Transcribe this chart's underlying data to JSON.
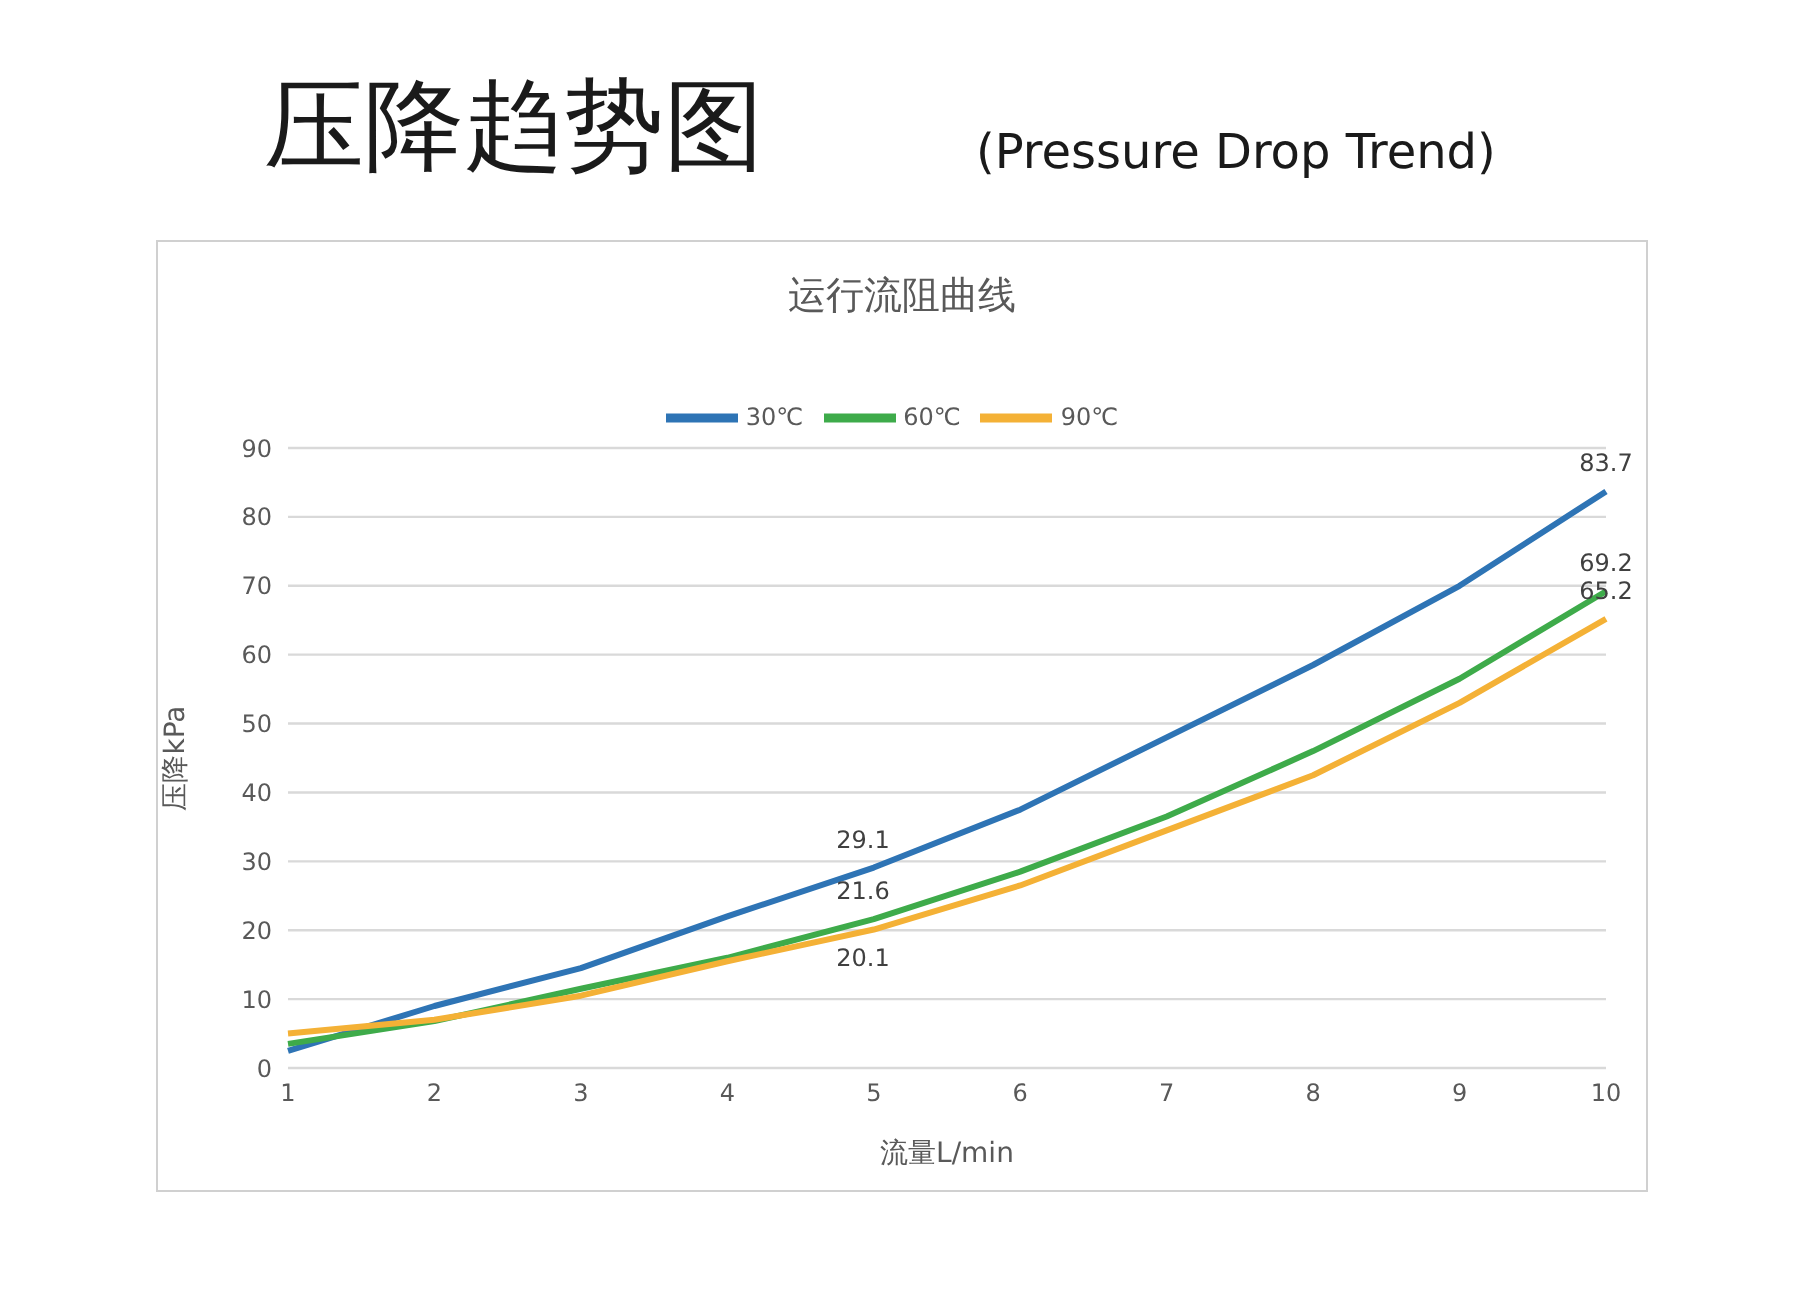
{
  "chart_data": {
    "type": "line",
    "title": "压降趋势图",
    "subtitle": "(Pressure Drop Trend)",
    "annotations": [
      "运行流阻曲线"
    ],
    "xlabel": "流量L/min",
    "ylabel": "压降kPa",
    "categories": [
      "1",
      "2",
      "3",
      "4",
      "5",
      "6",
      "7",
      "8",
      "9",
      "10"
    ],
    "series": [
      {
        "name": "30℃",
        "color": "#2e74b5",
        "values": [
          2.5,
          9,
          14.5,
          22,
          29.1,
          37.5,
          48,
          58.5,
          70,
          83.7
        ],
        "value_labels": [
          null,
          null,
          null,
          null,
          "29.1",
          null,
          null,
          null,
          null,
          "83.7"
        ]
      },
      {
        "name": "60℃",
        "color": "#3eab4a",
        "values": [
          3.5,
          6.8,
          11.5,
          16,
          21.6,
          28.5,
          36.5,
          46,
          56.5,
          69.2
        ],
        "value_labels": [
          null,
          null,
          null,
          null,
          "21.6",
          null,
          null,
          null,
          null,
          "69.2"
        ]
      },
      {
        "name": "90℃",
        "color": "#f4b136",
        "values": [
          5,
          7,
          10.5,
          15.5,
          20.1,
          26.5,
          34.5,
          42.5,
          53,
          65.2
        ],
        "value_labels": [
          null,
          null,
          null,
          null,
          "20.1",
          null,
          null,
          null,
          null,
          "65.2"
        ]
      }
    ],
    "ylim": [
      0,
      90
    ],
    "yticks": [
      0,
      10,
      20,
      30,
      40,
      50,
      60,
      70,
      80,
      90
    ],
    "grid": "y",
    "legend": "top",
    "marker": "none",
    "line_style": "solid"
  }
}
